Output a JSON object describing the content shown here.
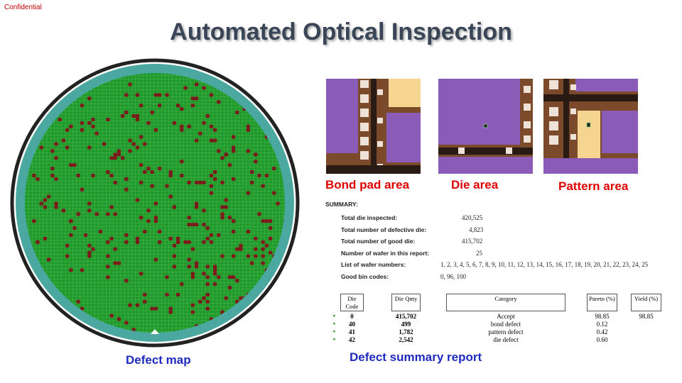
{
  "confidential": "Confidential",
  "title": "Automated Optical Inspection",
  "colors": {
    "title": "#3a4658",
    "label_red": "#e00000",
    "caption_blue": "#1f2bc0",
    "wafer_die": "#1f9a2a",
    "wafer_edge": "#4aa8a0",
    "defect": "#7a1a1a"
  },
  "images": [
    {
      "label": "Bond pad area"
    },
    {
      "label": "Die area"
    },
    {
      "label": "Pattern area"
    }
  ],
  "captions": {
    "defect_map": "Defect map",
    "report": "Defect summary report"
  },
  "summary": {
    "heading": "SUMMARY:",
    "rows": [
      {
        "key": "Total die inspected:",
        "value": "420,525"
      },
      {
        "key": "Total number of defective die:",
        "value": "4,823"
      },
      {
        "key": "Total number of good die:",
        "value": "415,702"
      },
      {
        "key": "Number of wafer in this report:",
        "value": "25"
      },
      {
        "key": "List of wafer numbers:",
        "value": "1, 2, 3, 4, 5, 6, 7, 8, 9, 10, 11, 12, 13, 14, 15, 16, 17, 18, 19, 20, 21, 22, 23, 24, 25"
      },
      {
        "key": "Good bin codes:",
        "value": "0, 96, 100"
      }
    ]
  },
  "table": {
    "headers": [
      "Die Code",
      "Die Qnty",
      "Category",
      "Pareto (%)",
      "Yield (%)"
    ],
    "rows": [
      {
        "code": "0",
        "qty": "415,702",
        "category": "Accept",
        "pareto": "98.85",
        "yield": "98.85"
      },
      {
        "code": "40",
        "qty": "499",
        "category": "bond defect",
        "pareto": "0.12",
        "yield": ""
      },
      {
        "code": "41",
        "qty": "1,782",
        "category": "pattern defect",
        "pareto": "0.42",
        "yield": ""
      },
      {
        "code": "42",
        "qty": "2,542",
        "category": "die defect",
        "pareto": "0.60",
        "yield": ""
      }
    ]
  }
}
